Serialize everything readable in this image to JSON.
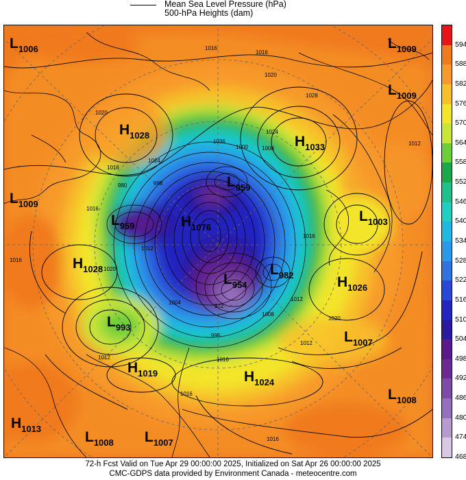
{
  "legend": {
    "pressure_label": "Mean Sea Level Pressure (hPa)",
    "heights_label": "500-hPa Heights (dam)"
  },
  "colorbar": {
    "labels": [
      "594",
      "588",
      "582",
      "576",
      "570",
      "564",
      "558",
      "552",
      "546",
      "540",
      "534",
      "528",
      "522",
      "516",
      "510",
      "504",
      "498",
      "492",
      "486",
      "480",
      "474",
      "468"
    ],
    "colors": [
      "#e8141a",
      "#f07a1e",
      "#f79a2b",
      "#f7c02a",
      "#f3e52c",
      "#c9e53a",
      "#6ccf3a",
      "#19a84a",
      "#20c08a",
      "#1fd0c0",
      "#1eb8e0",
      "#2a9ae8",
      "#2f72e0",
      "#2a48d8",
      "#2424c0",
      "#2a1aa0",
      "#5a1a8c",
      "#6b2a92",
      "#7e4aa8",
      "#9570bc",
      "#b69ad0",
      "#d8c8e6"
    ]
  },
  "pressure_centers": [
    {
      "type": "L",
      "value": "1006"
    },
    {
      "type": "L",
      "value": "1009"
    },
    {
      "type": "L",
      "value": "1009"
    },
    {
      "type": "H",
      "value": "1028"
    },
    {
      "type": "H",
      "value": "1033"
    },
    {
      "type": "L",
      "value": "959"
    },
    {
      "type": "L",
      "value": "1009"
    },
    {
      "type": "L",
      "value": "959"
    },
    {
      "type": "H",
      "value": "1076"
    },
    {
      "type": "L",
      "value": "1003"
    },
    {
      "type": "H",
      "value": "1028"
    },
    {
      "type": "L",
      "value": "954"
    },
    {
      "type": "L",
      "value": "982"
    },
    {
      "type": "H",
      "value": "1026"
    },
    {
      "type": "L",
      "value": "993"
    },
    {
      "type": "L",
      "value": "1007"
    },
    {
      "type": "H",
      "value": "1019"
    },
    {
      "type": "H",
      "value": "1024"
    },
    {
      "type": "L",
      "value": "1008"
    },
    {
      "type": "H",
      "value": "1013"
    },
    {
      "type": "L",
      "value": "1008"
    },
    {
      "type": "L",
      "value": "1007"
    }
  ],
  "isobar_labels": [
    "1016",
    "1016",
    "1020",
    "1028",
    "1020",
    "1024",
    "1012",
    "1016",
    "1024",
    "1000",
    "1008",
    "1036",
    "980",
    "988",
    "1016",
    "1016",
    "1012",
    "1020",
    "1016",
    "1004",
    "972",
    "996",
    "1008",
    "1012",
    "1012",
    "1016",
    "1016",
    "1012",
    "1020",
    "1016"
  ],
  "footer": {
    "line1": "72-h Fcst Valid on Tue Apr 29 00:00:00 2025, Initialized on Sat Apr 26 00:00:00 2025",
    "line2": "CMC-GDPS data provided by Environment Canada - meteocentre.com"
  }
}
